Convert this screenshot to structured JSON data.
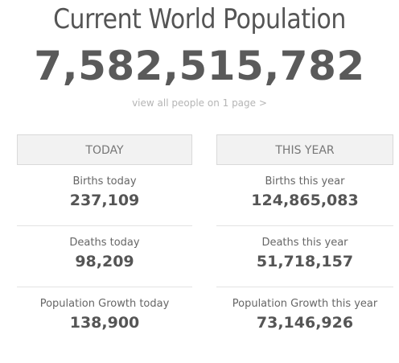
{
  "header": {
    "title": "Current World Population",
    "counter": "7,582,515,782",
    "link": "view all people on 1 page >"
  },
  "today": {
    "label": "TODAY",
    "births_label": "Births today",
    "births_value": "237,109",
    "deaths_label": "Deaths today",
    "deaths_value": "98,209",
    "growth_label": "Population Growth today",
    "growth_value": "138,900"
  },
  "year": {
    "label": "THIS YEAR",
    "births_label": "Births this year",
    "births_value": "124,865,083",
    "deaths_label": "Deaths this year",
    "deaths_value": "51,718,157",
    "growth_label": "Population Growth this year",
    "growth_value": "73,146,926"
  }
}
